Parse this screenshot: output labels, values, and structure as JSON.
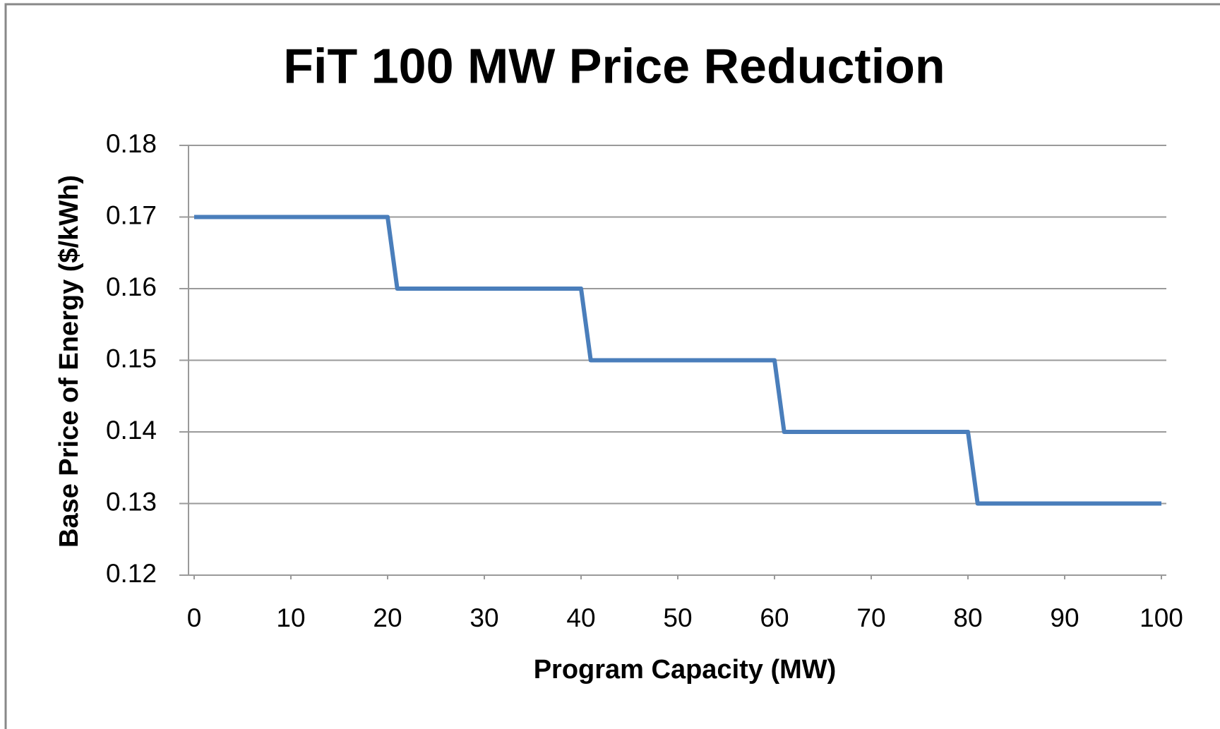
{
  "chart_data": {
    "type": "line",
    "title": "FiT 100 MW Price Reduction",
    "x_label": "Program Capacity (MW)",
    "y_label": "Base Price of Energy ($/kWh)",
    "x": [
      0,
      20,
      21,
      40,
      41,
      60,
      61,
      80,
      81,
      100
    ],
    "series": [
      {
        "color": "#4a7ebb",
        "values": [
          0.17,
          0.17,
          0.16,
          0.16,
          0.15,
          0.15,
          0.14,
          0.14,
          0.13,
          0.13
        ]
      }
    ],
    "xlim": [
      0,
      100
    ],
    "xticks": [
      0,
      10,
      20,
      30,
      40,
      50,
      60,
      70,
      80,
      90,
      100
    ],
    "ylim": [
      0.12,
      0.18
    ],
    "yticks": [
      0.12,
      0.13,
      0.14,
      0.15,
      0.16,
      0.17,
      0.18
    ],
    "grid": true
  }
}
